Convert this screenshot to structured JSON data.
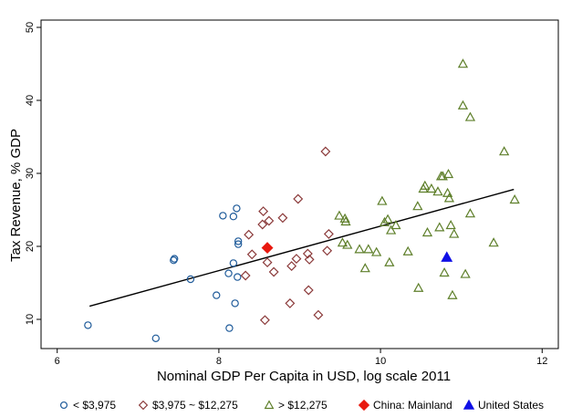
{
  "chart_data": {
    "type": "scatter",
    "title": "",
    "xlabel": "Nominal GDP Per Capita in USD, log scale 2011",
    "ylabel": "Tax Revenue, % GDP",
    "xlim": [
      5.8,
      12.2
    ],
    "ylim": [
      6,
      51
    ],
    "x_ticks": [
      6,
      8,
      10,
      12
    ],
    "y_ticks": [
      10,
      20,
      30,
      40,
      50
    ],
    "x_tick_labels": [
      "6",
      "8",
      "10",
      "12"
    ],
    "y_tick_labels": [
      "10",
      "20",
      "30",
      "40",
      "50"
    ],
    "grid": false,
    "legend_position": "bottom",
    "fit_line": {
      "x": [
        6.4,
        11.65
      ],
      "y": [
        11.8,
        27.8
      ]
    },
    "series": [
      {
        "name": "< $3,975",
        "marker": "circle-open",
        "color": "#1f5b9a",
        "points": [
          [
            6.38,
            9.2
          ],
          [
            7.22,
            7.4
          ],
          [
            7.44,
            18.1
          ],
          [
            7.45,
            18.3
          ],
          [
            7.65,
            15.5
          ],
          [
            7.97,
            13.3
          ],
          [
            8.05,
            24.2
          ],
          [
            8.12,
            16.3
          ],
          [
            8.13,
            8.8
          ],
          [
            8.18,
            24.1
          ],
          [
            8.18,
            17.7
          ],
          [
            8.2,
            12.2
          ],
          [
            8.22,
            25.2
          ],
          [
            8.23,
            15.8
          ],
          [
            8.24,
            20.3
          ],
          [
            8.24,
            20.7
          ]
        ]
      },
      {
        "name": "$3,975 ~ $12,275",
        "marker": "diamond-open",
        "color": "#8b3a3a",
        "points": [
          [
            8.33,
            16.0
          ],
          [
            8.37,
            21.6
          ],
          [
            8.41,
            18.9
          ],
          [
            8.54,
            23.0
          ],
          [
            8.55,
            24.8
          ],
          [
            8.57,
            9.9
          ],
          [
            8.6,
            17.8
          ],
          [
            8.62,
            23.5
          ],
          [
            8.68,
            16.5
          ],
          [
            8.79,
            23.9
          ],
          [
            8.88,
            12.2
          ],
          [
            8.9,
            17.3
          ],
          [
            8.96,
            18.3
          ],
          [
            8.98,
            26.5
          ],
          [
            9.1,
            19.0
          ],
          [
            9.11,
            14.0
          ],
          [
            9.12,
            18.2
          ],
          [
            9.23,
            10.6
          ],
          [
            9.32,
            33.0
          ],
          [
            9.34,
            19.4
          ],
          [
            9.36,
            21.7
          ]
        ]
      },
      {
        "name": "> $12,275",
        "marker": "triangle-open",
        "color": "#5e7f2a",
        "points": [
          [
            9.49,
            24.2
          ],
          [
            9.53,
            20.5
          ],
          [
            9.56,
            23.8
          ],
          [
            9.57,
            23.4
          ],
          [
            9.59,
            20.2
          ],
          [
            9.74,
            19.6
          ],
          [
            9.81,
            17.0
          ],
          [
            9.85,
            19.6
          ],
          [
            9.95,
            19.2
          ],
          [
            10.02,
            26.2
          ],
          [
            10.05,
            23.3
          ],
          [
            10.09,
            23.7
          ],
          [
            10.11,
            17.8
          ],
          [
            10.13,
            22.2
          ],
          [
            10.19,
            22.9
          ],
          [
            10.34,
            19.3
          ],
          [
            10.46,
            25.5
          ],
          [
            10.47,
            14.3
          ],
          [
            10.53,
            27.9
          ],
          [
            10.55,
            28.3
          ],
          [
            10.58,
            21.9
          ],
          [
            10.63,
            27.9
          ],
          [
            10.71,
            27.5
          ],
          [
            10.73,
            22.6
          ],
          [
            10.75,
            29.6
          ],
          [
            10.77,
            29.6
          ],
          [
            10.79,
            16.4
          ],
          [
            10.83,
            27.3
          ],
          [
            10.84,
            29.9
          ],
          [
            10.85,
            26.6
          ],
          [
            10.87,
            22.9
          ],
          [
            10.89,
            13.3
          ],
          [
            10.91,
            21.7
          ],
          [
            11.02,
            39.3
          ],
          [
            11.02,
            45.0
          ],
          [
            11.05,
            16.2
          ],
          [
            11.11,
            37.7
          ],
          [
            11.11,
            24.5
          ],
          [
            11.4,
            20.5
          ],
          [
            11.53,
            33.0
          ],
          [
            11.66,
            26.4
          ]
        ]
      },
      {
        "name": "China: Mainland",
        "marker": "diamond-filled",
        "color": "#e8190f",
        "points": [
          [
            8.6,
            19.8
          ]
        ]
      },
      {
        "name": "United States",
        "marker": "triangle-filled",
        "color": "#1010e6",
        "points": [
          [
            10.82,
            18.5
          ]
        ]
      }
    ]
  }
}
